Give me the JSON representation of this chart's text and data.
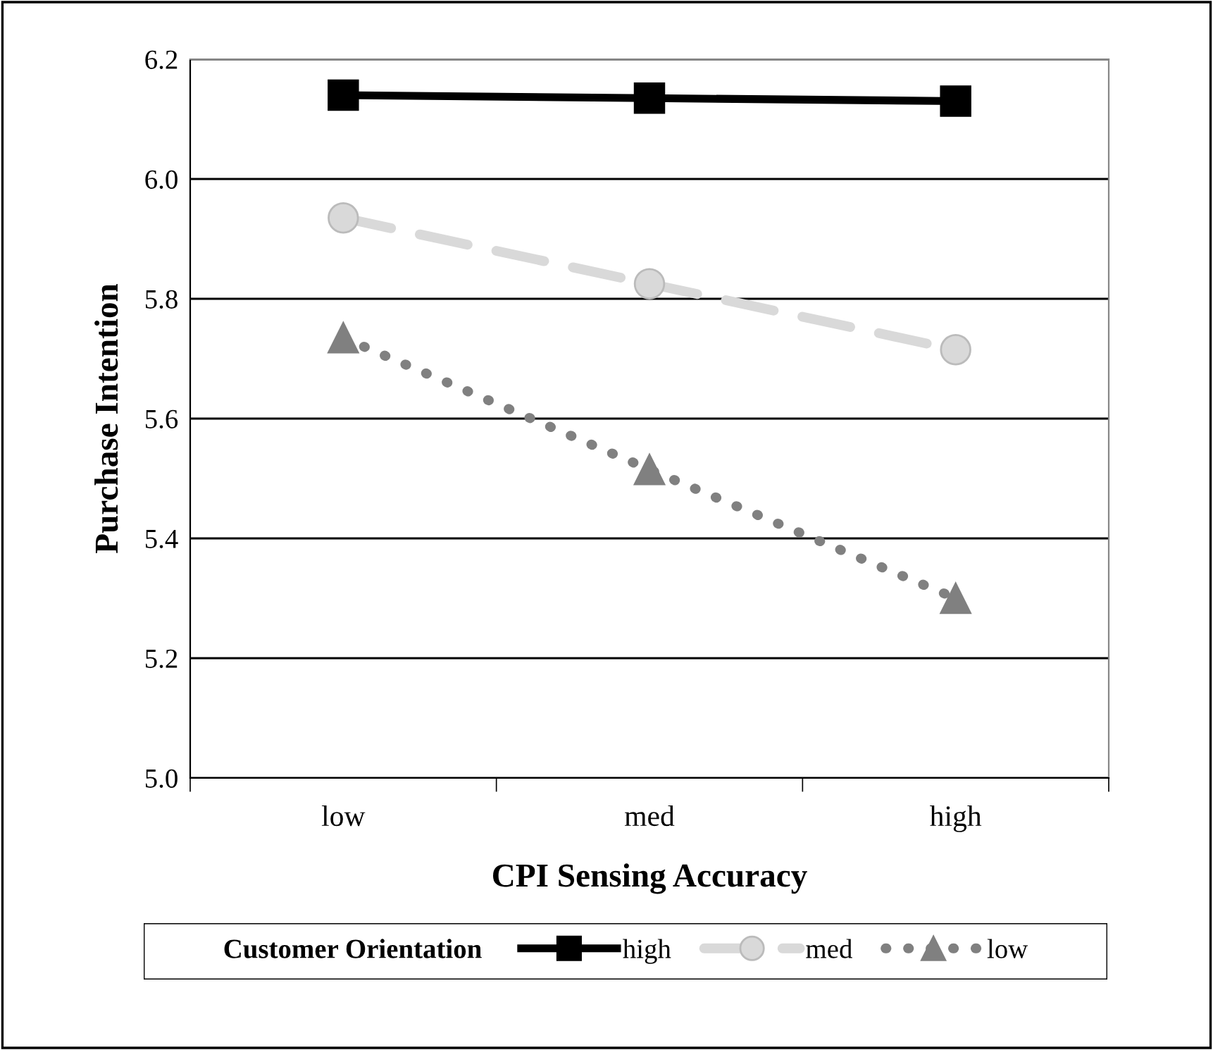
{
  "chart_data": {
    "type": "line",
    "xlabel": "CPI Sensing Accuracy",
    "ylabel": "Purchase Intention",
    "categories": [
      "low",
      "med",
      "high"
    ],
    "series": [
      {
        "name": "high",
        "color": "#000000",
        "values": [
          6.14,
          6.135,
          6.13
        ],
        "marker": "square",
        "line_style": "solid"
      },
      {
        "name": "med",
        "color": "#d9d9d9",
        "values": [
          5.935,
          5.825,
          5.715
        ],
        "marker": "circle",
        "line_style": "dashed"
      },
      {
        "name": "low",
        "color": "#808080",
        "values": [
          5.735,
          5.515,
          5.3
        ],
        "marker": "triangle",
        "line_style": "dotted"
      }
    ],
    "ylim": [
      5.0,
      6.2
    ],
    "yticks": [
      {
        "value": 5.0,
        "label": "5.0"
      },
      {
        "value": 5.2,
        "label": "5.2"
      },
      {
        "value": 5.4,
        "label": "5.4"
      },
      {
        "value": 5.6,
        "label": "5.6"
      },
      {
        "value": 5.8,
        "label": "5.8"
      },
      {
        "value": 6.0,
        "label": "6.0"
      },
      {
        "value": 6.2,
        "label": "6.2"
      }
    ],
    "grid": "y",
    "legend": "bottom",
    "legend_title": "Customer Orientation"
  }
}
